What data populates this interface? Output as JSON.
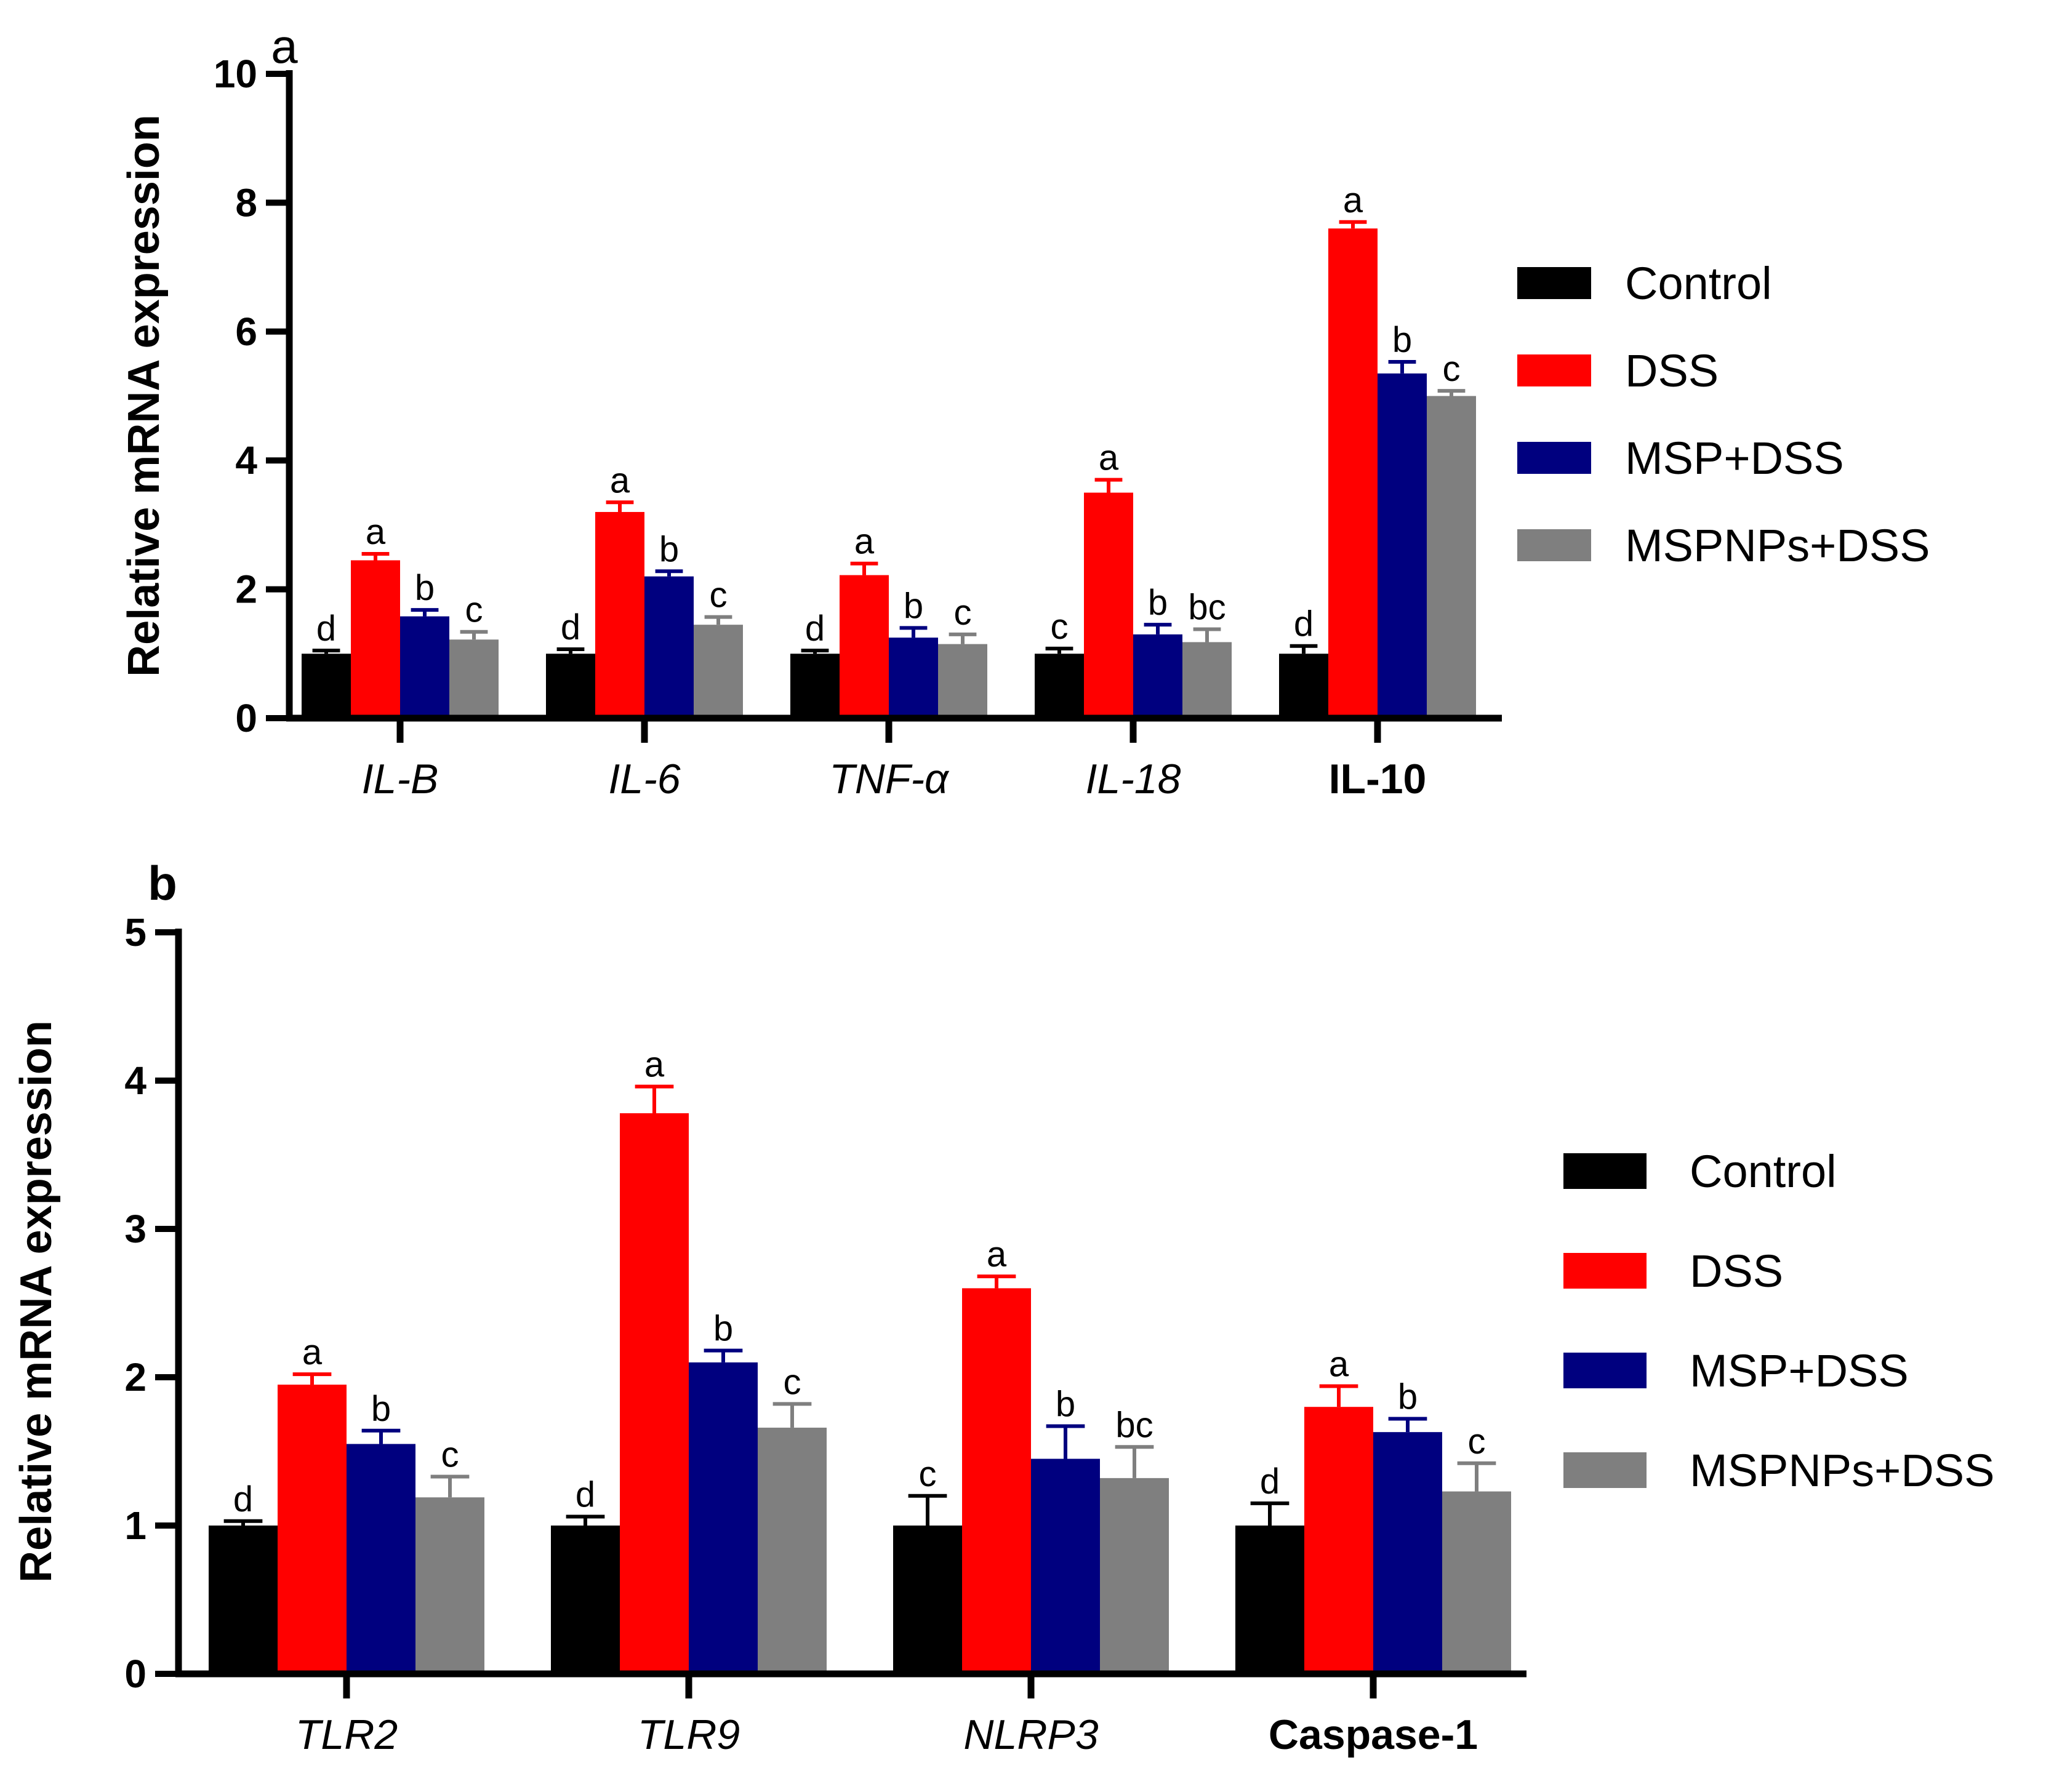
{
  "colors": {
    "Control": "#000000",
    "DSS": "#ff0000",
    "MSP+DSS": "#00007f",
    "MSPNPs+DSS": "#7f7f7f"
  },
  "chart_data": [
    {
      "type": "bar",
      "panel_label": "a",
      "ylabel": "Relative mRNA expression",
      "xlabel": "",
      "ylim": [
        0,
        10
      ],
      "yticks": [
        "0",
        "2",
        "4",
        "6",
        "8",
        "10"
      ],
      "grid": false,
      "legend_position": "right",
      "categories": [
        "IL-B",
        "IL-6",
        "TNF-α",
        "IL-18",
        "IL-10"
      ],
      "category_italic": [
        true,
        true,
        true,
        true,
        false
      ],
      "series": [
        {
          "name": "Control",
          "values": [
            1.0,
            1.0,
            1.0,
            1.0,
            1.0
          ],
          "errors": [
            0.05,
            0.07,
            0.05,
            0.08,
            0.12
          ],
          "labels": [
            "d",
            "d",
            "d",
            "c",
            "d"
          ]
        },
        {
          "name": "DSS",
          "values": [
            2.45,
            3.2,
            2.22,
            3.5,
            7.6
          ],
          "errors": [
            0.1,
            0.15,
            0.18,
            0.2,
            0.1
          ],
          "labels": [
            "a",
            "a",
            "a",
            "a",
            "a"
          ]
        },
        {
          "name": "MSP+DSS",
          "values": [
            1.58,
            2.2,
            1.25,
            1.3,
            5.35
          ],
          "errors": [
            0.1,
            0.08,
            0.15,
            0.15,
            0.18
          ],
          "labels": [
            "b",
            "b",
            "b",
            "b",
            "b"
          ]
        },
        {
          "name": "MSPNPs+DSS",
          "values": [
            1.22,
            1.45,
            1.15,
            1.18,
            5.0
          ],
          "errors": [
            0.12,
            0.12,
            0.15,
            0.2,
            0.08
          ],
          "labels": [
            "c",
            "c",
            "c",
            "bc",
            "c"
          ]
        }
      ]
    },
    {
      "type": "bar",
      "panel_label": "b",
      "ylabel": "Relative mRNA expression",
      "xlabel": "",
      "ylim": [
        0,
        5
      ],
      "yticks": [
        "0",
        "1",
        "2",
        "3",
        "4",
        "5"
      ],
      "grid": false,
      "legend_position": "right",
      "categories": [
        "TLR2",
        "TLR9",
        "NLRP3",
        "Caspase-1"
      ],
      "category_italic": [
        true,
        true,
        true,
        false
      ],
      "series": [
        {
          "name": "Control",
          "values": [
            1.0,
            1.0,
            1.0,
            1.0
          ],
          "errors": [
            0.03,
            0.06,
            0.2,
            0.15
          ],
          "labels": [
            "d",
            "d",
            "c",
            "d"
          ]
        },
        {
          "name": "DSS",
          "values": [
            1.95,
            3.78,
            2.6,
            1.8
          ],
          "errors": [
            0.07,
            0.18,
            0.08,
            0.14
          ],
          "labels": [
            "a",
            "a",
            "a",
            "a"
          ]
        },
        {
          "name": "MSP+DSS",
          "values": [
            1.55,
            2.1,
            1.45,
            1.63
          ],
          "errors": [
            0.09,
            0.08,
            0.22,
            0.09
          ],
          "labels": [
            "b",
            "b",
            "b",
            "b"
          ]
        },
        {
          "name": "MSPNPs+DSS",
          "values": [
            1.19,
            1.66,
            1.32,
            1.23
          ],
          "errors": [
            0.14,
            0.16,
            0.21,
            0.19
          ],
          "labels": [
            "c",
            "c",
            "bc",
            "c"
          ]
        }
      ]
    }
  ]
}
